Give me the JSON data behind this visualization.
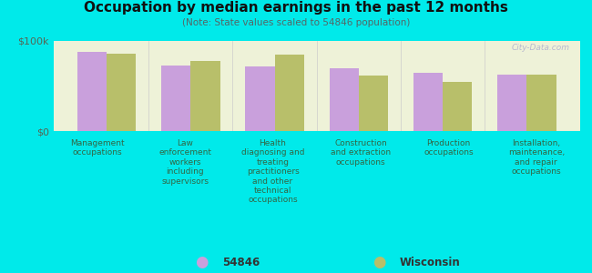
{
  "title": "Occupation by median earnings in the past 12 months",
  "subtitle": "(Note: State values scaled to 54846 population)",
  "background_color": "#00eaea",
  "plot_bg_color": "#eef2d8",
  "categories": [
    "Management\noccupations",
    "Law\nenforcement\nworkers\nincluding\nsupervisors",
    "Health\ndiagnosing and\ntreating\npractitioners\nand other\ntechnical\noccupations",
    "Construction\nand extraction\noccupations",
    "Production\noccupations",
    "Installation,\nmaintenance,\nand repair\noccupations"
  ],
  "values_54846": [
    88000,
    73000,
    72000,
    70000,
    65000,
    63000
  ],
  "values_wisconsin": [
    86000,
    78000,
    85000,
    62000,
    55000,
    63000
  ],
  "color_54846": "#c9a0dc",
  "color_wisconsin": "#b8bf6a",
  "ylim": [
    0,
    100000
  ],
  "yticks": [
    0,
    100000
  ],
  "ytick_labels": [
    "$0",
    "$100k"
  ],
  "legend_label_54846": "54846",
  "legend_label_wisconsin": "Wisconsin",
  "watermark": "City-Data.com"
}
